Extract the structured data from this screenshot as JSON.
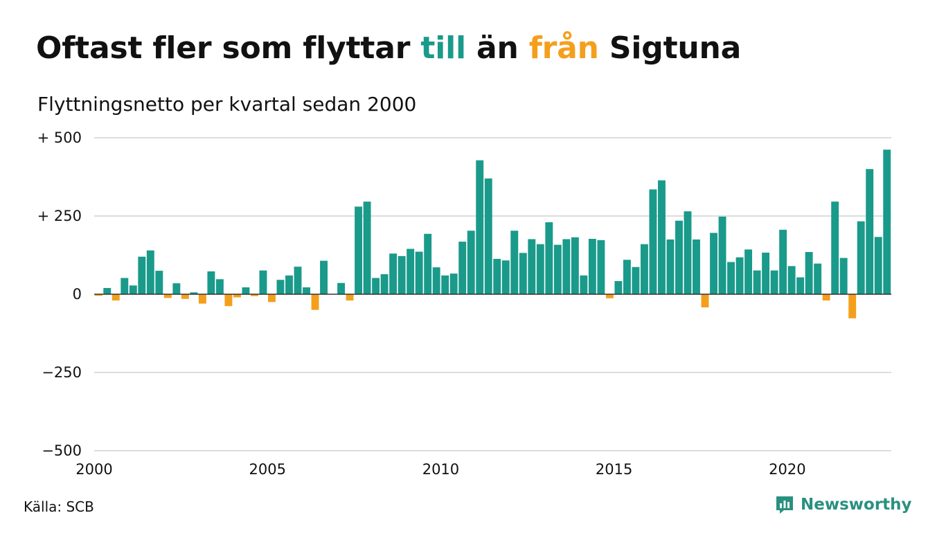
{
  "title": {
    "part1": "Oftast fler som flyttar ",
    "part2": "till",
    "part3": " än ",
    "part4": "från",
    "part5": " Sigtuna"
  },
  "subtitle": "Flyttningsnetto per kvartal sedan 2000",
  "source": "Källa: SCB",
  "brand": {
    "name": "Newsworthy",
    "icon": "newsworthy-logo-icon"
  },
  "colors": {
    "positive": "#1a9a8a",
    "negative": "#f49f1c",
    "title_positive": "#1a9a8a",
    "title_negative": "#f49f1c",
    "brand": "#2a9080",
    "gridline": "#dddddd",
    "zero_line": "#333333"
  },
  "chart_data": {
    "type": "bar",
    "x_unit": "quarter",
    "start": "2000 Q1",
    "xticks": [
      2000,
      2005,
      2010,
      2015,
      2020
    ],
    "xtick_labels": [
      "2000",
      "2005",
      "2010",
      "2015",
      "2020"
    ],
    "ylim": [
      -500,
      500
    ],
    "yticks": [
      500,
      250,
      0,
      -250,
      -500
    ],
    "ytick_labels": [
      "+ 500",
      "+ 250",
      "0",
      "−250",
      "−500"
    ],
    "grid": true,
    "values": [
      -5,
      20,
      -20,
      52,
      28,
      120,
      140,
      75,
      -12,
      35,
      -15,
      6,
      -30,
      73,
      48,
      -38,
      -10,
      22,
      -6,
      76,
      -25,
      46,
      60,
      88,
      22,
      -50,
      107,
      0,
      36,
      -20,
      280,
      296,
      52,
      64,
      130,
      122,
      145,
      136,
      193,
      86,
      60,
      66,
      168,
      203,
      428,
      370,
      113,
      108,
      203,
      132,
      176,
      160,
      230,
      158,
      176,
      182,
      60,
      177,
      173,
      -13,
      42,
      110,
      87,
      160,
      335,
      364,
      175,
      235,
      265,
      175,
      -42,
      196,
      248,
      103,
      118,
      143,
      76,
      133,
      76,
      206,
      90,
      54,
      135,
      98,
      -20,
      296,
      116,
      -77,
      233,
      400,
      183,
      462
    ]
  }
}
